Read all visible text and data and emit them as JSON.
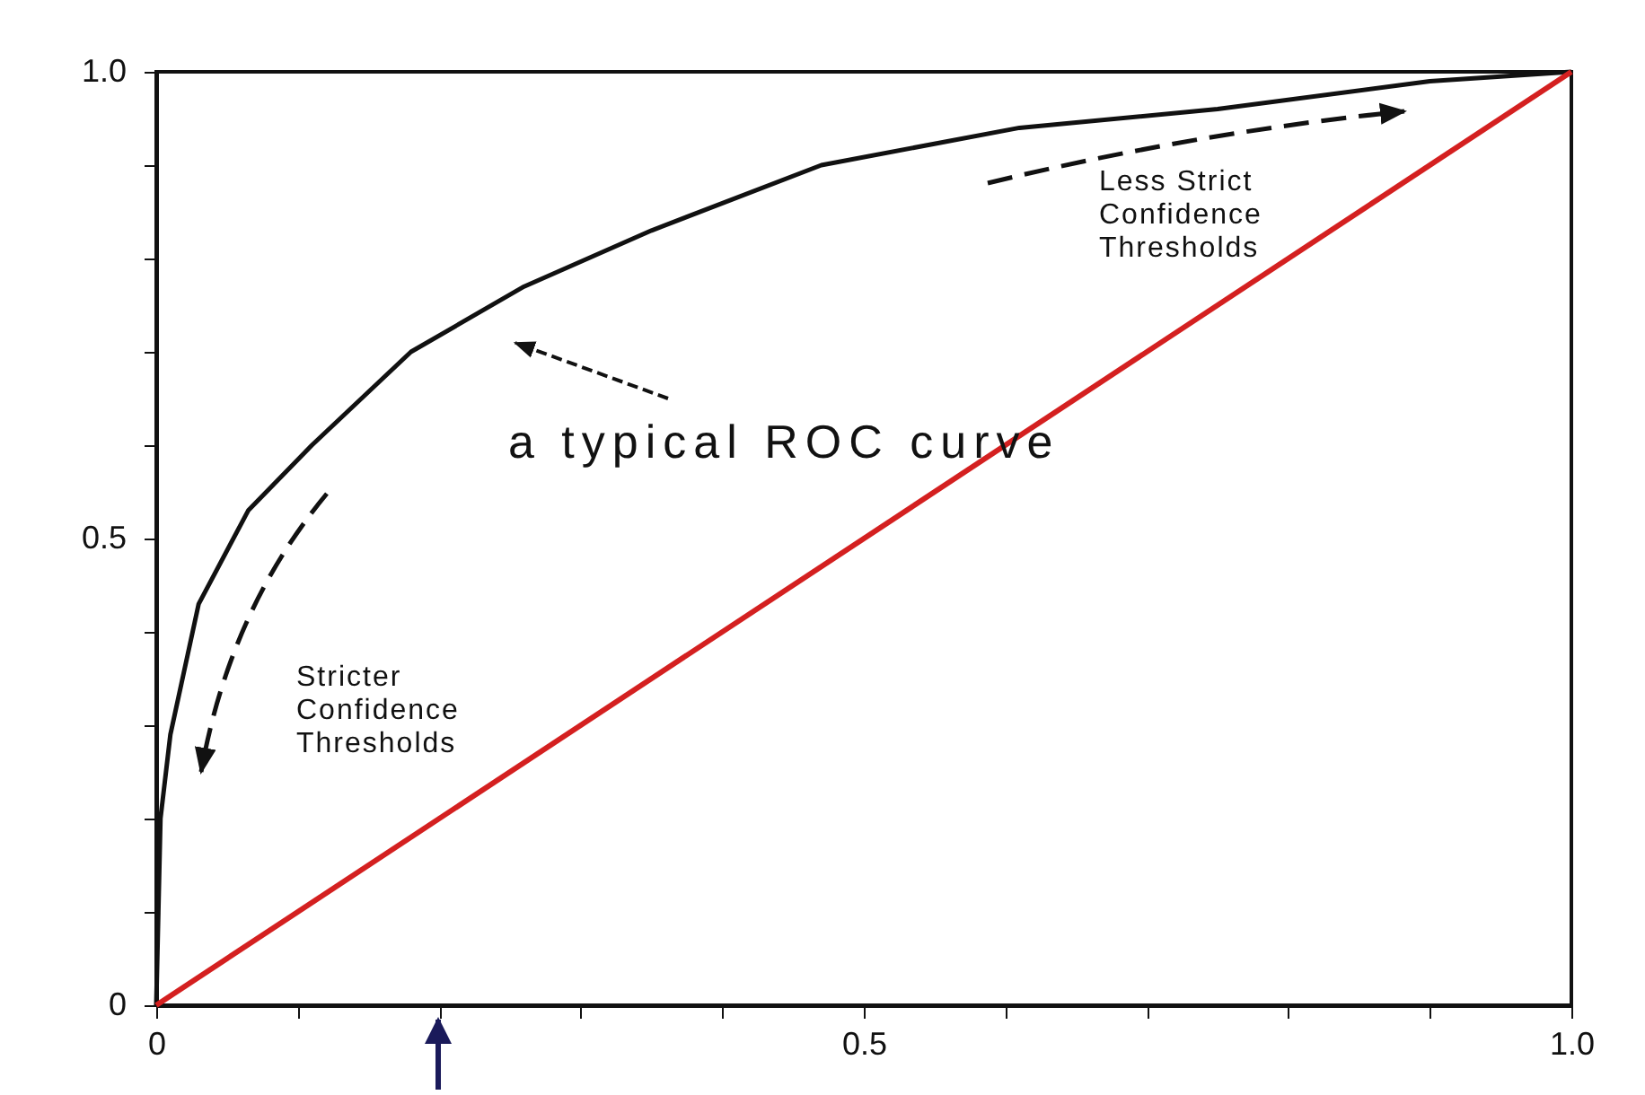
{
  "chart_data": {
    "type": "line",
    "series": [
      {
        "color": "#111111",
        "x": [
          0,
          0.003,
          0.01,
          0.03,
          0.065,
          0.11,
          0.18,
          0.26,
          0.35,
          0.47,
          0.61,
          0.75,
          0.9,
          1
        ],
        "values": [
          0,
          0.2,
          0.29,
          0.43,
          0.53,
          0.6,
          0.7,
          0.77,
          0.83,
          0.9,
          0.94,
          0.96,
          0.99,
          1
        ]
      },
      {
        "color": "#d42020",
        "x": [
          0,
          1
        ],
        "values": [
          0,
          1
        ]
      }
    ],
    "xlim": [
      0,
      1
    ],
    "ylim": [
      0,
      1
    ],
    "xticks": [
      0,
      {
        "value": 0.1,
        "label": null
      },
      {
        "value": 0.2,
        "label": null
      },
      {
        "value": 0.3,
        "label": null
      },
      {
        "value": 0.4,
        "label": null
      },
      0.5,
      {
        "value": 0.6,
        "label": null
      },
      {
        "value": 0.7,
        "label": null
      },
      {
        "value": 0.8,
        "label": null
      },
      {
        "value": 0.9,
        "label": null
      },
      {
        "value": 1,
        "label": "1.0"
      }
    ],
    "yticks": [
      0,
      {
        "value": 0.1,
        "label": null
      },
      {
        "value": 0.2,
        "label": null
      },
      {
        "value": 0.3,
        "label": null
      },
      {
        "value": 0.4,
        "label": null
      },
      0.5,
      {
        "value": 0.6,
        "label": null
      },
      {
        "value": 0.7,
        "label": null
      },
      {
        "value": 0.8,
        "label": null
      },
      {
        "value": 0.9,
        "label": null
      },
      {
        "value": 1,
        "label": "1.0"
      }
    ],
    "annotations": [
      "a typical ROC curve",
      "Less Strict\nConfidence\nThresholds",
      "Stricter\nConfidence\nThresholds"
    ],
    "grid": false,
    "marker": "none",
    "line_style": "solid"
  }
}
